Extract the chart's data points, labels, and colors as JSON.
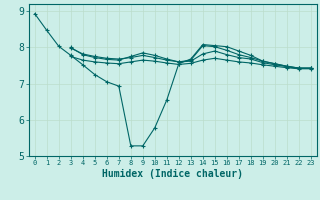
{
  "title": "",
  "xlabel": "Humidex (Indice chaleur)",
  "bg_color": "#cceee8",
  "grid_color": "#bbddcc",
  "line_color": "#006666",
  "xlim": [
    -0.5,
    23.5
  ],
  "ylim": [
    5,
    9.2
  ],
  "xticks": [
    0,
    1,
    2,
    3,
    4,
    5,
    6,
    7,
    8,
    9,
    10,
    11,
    12,
    13,
    14,
    15,
    16,
    17,
    18,
    19,
    20,
    21,
    22,
    23
  ],
  "yticks": [
    5,
    6,
    7,
    8,
    9
  ],
  "lines": [
    {
      "x": [
        0,
        1,
        2,
        3,
        4,
        5,
        6,
        7,
        8,
        9,
        10,
        11,
        12,
        13,
        14,
        15,
        16,
        17,
        18,
        19,
        20,
        21,
        22,
        23
      ],
      "y": [
        8.93,
        8.47,
        8.03,
        7.78,
        7.52,
        7.25,
        7.05,
        6.93,
        5.28,
        5.28,
        5.78,
        6.55,
        7.55,
        7.68,
        8.08,
        8.05,
        8.02,
        7.9,
        7.78,
        7.62,
        7.55,
        7.48,
        7.43,
        7.43
      ],
      "style": "-",
      "marker": "+",
      "lw": 0.8
    },
    {
      "x": [
        3,
        4,
        5,
        6,
        7,
        8,
        9,
        10,
        11,
        12,
        13,
        14,
        15,
        16,
        17,
        18,
        19,
        20,
        21,
        22,
        23
      ],
      "y": [
        8.0,
        7.8,
        7.72,
        7.67,
        7.65,
        7.75,
        7.85,
        7.78,
        7.68,
        7.6,
        7.65,
        8.05,
        8.02,
        7.92,
        7.8,
        7.72,
        7.62,
        7.55,
        7.48,
        7.43,
        7.43
      ],
      "style": "-",
      "marker": "+",
      "lw": 0.8
    },
    {
      "x": [
        3,
        4,
        5,
        6,
        7,
        8,
        9,
        10,
        11,
        12,
        13,
        14,
        15,
        16,
        17,
        18,
        19,
        20,
        21,
        22,
        23
      ],
      "y": [
        7.98,
        7.82,
        7.75,
        7.7,
        7.68,
        7.72,
        7.78,
        7.72,
        7.65,
        7.6,
        7.62,
        7.82,
        7.9,
        7.8,
        7.72,
        7.68,
        7.58,
        7.52,
        7.47,
        7.42,
        7.42
      ],
      "style": "-",
      "marker": "+",
      "lw": 0.8
    },
    {
      "x": [
        3,
        4,
        5,
        6,
        7,
        8,
        9,
        10,
        11,
        12,
        13,
        14,
        15,
        16,
        17,
        18,
        19,
        20,
        21,
        22,
        23
      ],
      "y": [
        7.75,
        7.65,
        7.6,
        7.57,
        7.55,
        7.6,
        7.65,
        7.62,
        7.57,
        7.53,
        7.56,
        7.65,
        7.7,
        7.65,
        7.6,
        7.57,
        7.52,
        7.48,
        7.44,
        7.41,
        7.41
      ],
      "style": "-",
      "marker": "+",
      "lw": 0.8
    }
  ]
}
